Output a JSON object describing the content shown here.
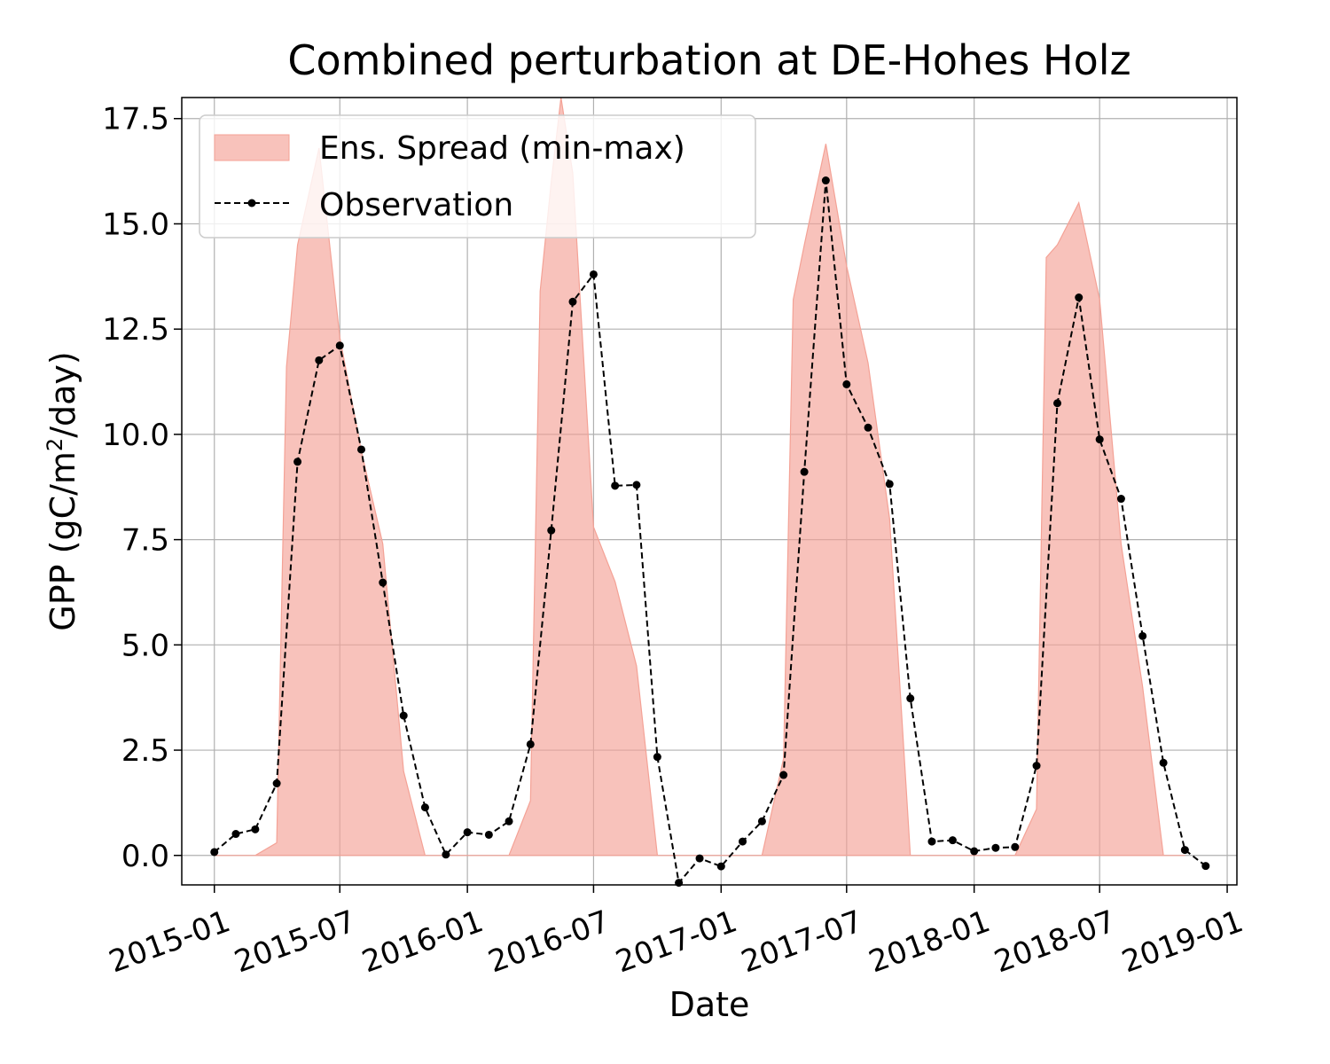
{
  "chart_data": {
    "type": "area",
    "title": "Combined perturbation at DE-Hohes Holz",
    "xlabel": "Date",
    "ylabel_main": "GPP  (gC/m",
    "ylabel_sup": "2",
    "ylabel_end": "/day)",
    "ylim": [
      -0.7,
      18.0
    ],
    "yticks": [
      0.0,
      2.5,
      5.0,
      7.5,
      10.0,
      12.5,
      15.0,
      17.5
    ],
    "ytick_labels": [
      "0.0",
      "2.5",
      "5.0",
      "7.5",
      "10.0",
      "12.5",
      "15.0",
      "17.5"
    ],
    "xlim": [
      "2014-11-15",
      "2019-01-15"
    ],
    "xticks": [
      "2015-01-01",
      "2015-07-01",
      "2016-01-01",
      "2016-07-01",
      "2017-01-01",
      "2017-07-01",
      "2018-01-01",
      "2018-07-01",
      "2019-01-01"
    ],
    "xtick_labels": [
      "2015-01",
      "2015-07",
      "2016-01",
      "2016-07",
      "2017-01",
      "2017-07",
      "2018-01",
      "2018-07",
      "2019-01"
    ],
    "grid": true,
    "legend_position": "top-left",
    "series": [
      {
        "name": "Ens. Spread (min-max)",
        "kind": "band",
        "color": "#f4a296",
        "x": [
          "2015-01-01",
          "2015-02-01",
          "2015-03-01",
          "2015-04-01",
          "2015-04-15",
          "2015-05-01",
          "2015-06-01",
          "2015-07-01",
          "2015-08-01",
          "2015-09-01",
          "2015-10-01",
          "2015-11-01",
          "2015-12-01",
          "2016-01-01",
          "2016-02-01",
          "2016-03-01",
          "2016-04-01",
          "2016-04-15",
          "2016-05-01",
          "2016-05-15",
          "2016-06-01",
          "2016-07-01",
          "2016-08-01",
          "2016-09-01",
          "2016-10-01",
          "2016-11-01",
          "2016-12-01",
          "2017-01-01",
          "2017-02-01",
          "2017-03-01",
          "2017-04-01",
          "2017-04-15",
          "2017-05-01",
          "2017-06-01",
          "2017-07-01",
          "2017-08-01",
          "2017-09-01",
          "2017-10-01",
          "2017-11-01",
          "2017-12-01",
          "2018-01-01",
          "2018-02-01",
          "2018-03-01",
          "2018-04-01",
          "2018-04-15",
          "2018-05-01",
          "2018-06-01",
          "2018-07-01",
          "2018-08-01",
          "2018-09-01",
          "2018-10-01",
          "2018-11-01"
        ],
        "lower": [
          0,
          0,
          0,
          0,
          0,
          0,
          0,
          0,
          0,
          0,
          0,
          0,
          0,
          0,
          0,
          0,
          0,
          0,
          0,
          0,
          0,
          0,
          0,
          0,
          0,
          0,
          0,
          0,
          0,
          0,
          0,
          0,
          0,
          0,
          0,
          0,
          0,
          0,
          0,
          0,
          0,
          0,
          0,
          0,
          0,
          0,
          0,
          0,
          0,
          0,
          0,
          0
        ],
        "upper": [
          0,
          0,
          0,
          0.3,
          11.6,
          14.5,
          16.8,
          12.3,
          9.6,
          7.4,
          2.0,
          0,
          0,
          0,
          0,
          0,
          1.3,
          13.4,
          16.0,
          18.0,
          16.2,
          7.8,
          6.5,
          4.5,
          0,
          0,
          0,
          0,
          0,
          0,
          2.3,
          13.2,
          14.5,
          16.9,
          14.0,
          11.7,
          8.0,
          0,
          0,
          0,
          0,
          0,
          0,
          1.1,
          14.2,
          14.5,
          15.5,
          13.2,
          7.4,
          4.0,
          0,
          0
        ]
      },
      {
        "name": "Observation",
        "kind": "line",
        "color": "#000000",
        "x": [
          "2015-01-01",
          "2015-02-01",
          "2015-03-01",
          "2015-04-01",
          "2015-05-01",
          "2015-06-01",
          "2015-07-01",
          "2015-08-01",
          "2015-09-01",
          "2015-10-01",
          "2015-11-01",
          "2015-12-01",
          "2016-01-01",
          "2016-02-01",
          "2016-03-01",
          "2016-04-01",
          "2016-05-01",
          "2016-06-01",
          "2016-07-01",
          "2016-08-01",
          "2016-09-01",
          "2016-10-01",
          "2016-11-01",
          "2016-12-01",
          "2017-01-01",
          "2017-02-01",
          "2017-03-01",
          "2017-04-01",
          "2017-05-01",
          "2017-06-01",
          "2017-07-01",
          "2017-08-01",
          "2017-09-01",
          "2017-10-01",
          "2017-11-01",
          "2017-12-01",
          "2018-01-01",
          "2018-02-01",
          "2018-03-01",
          "2018-04-01",
          "2018-05-01",
          "2018-06-01",
          "2018-07-01",
          "2018-08-01",
          "2018-09-01",
          "2018-10-01",
          "2018-11-01",
          "2018-12-01"
        ],
        "y": [
          0.08,
          0.51,
          0.62,
          1.71,
          9.35,
          11.76,
          12.11,
          9.64,
          6.48,
          3.32,
          1.14,
          0.02,
          0.55,
          0.49,
          0.81,
          2.64,
          7.72,
          13.15,
          13.8,
          8.78,
          8.8,
          2.34,
          -0.65,
          -0.07,
          -0.26,
          0.33,
          0.81,
          1.91,
          9.11,
          16.03,
          11.19,
          10.16,
          8.82,
          3.73,
          0.33,
          0.36,
          0.1,
          0.18,
          0.2,
          2.13,
          10.74,
          13.25,
          9.88,
          8.47,
          5.21,
          2.2,
          0.13,
          -0.25
        ]
      }
    ]
  }
}
